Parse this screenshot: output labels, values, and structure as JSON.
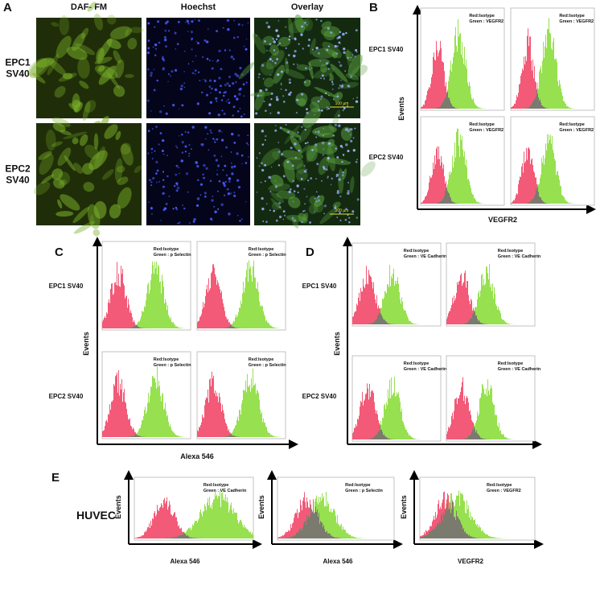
{
  "figure": {
    "panel_a": {
      "label": "A",
      "columns": [
        "DAF- FM",
        "Hoechst",
        "Overlay"
      ],
      "rows": [
        [
          "EPC1",
          "SV40"
        ],
        [
          "EPC2",
          "SV40"
        ]
      ],
      "scale_bar": "100 µm"
    },
    "panel_b": {
      "label": "B",
      "rows": [
        "EPC1 SV40",
        "EPC2 SV40"
      ],
      "y_axis": "Events",
      "x_axis": "VEGFR2",
      "legend": [
        "Red:Isotype",
        "Green : VEGFR2"
      ]
    },
    "panel_c": {
      "label": "C",
      "rows": [
        "EPC1 SV40",
        "EPC2 SV40"
      ],
      "y_axis": "Events",
      "x_axis": "Alexa 546",
      "legend": [
        "Red:Isotype",
        "Green : p Selectin"
      ]
    },
    "panel_d": {
      "label": "D",
      "rows": [
        "EPC1 SV40",
        "EPC2 SV40"
      ],
      "y_axis": "Events",
      "legend": [
        "Red:Isotype",
        "Green : VE Cadherin"
      ]
    },
    "panel_e": {
      "label": "E",
      "row": "HUVEC",
      "plots": [
        {
          "legend": [
            "Red:Isotype",
            "Green : VE Cadherin"
          ],
          "y_axis": "Events",
          "x_axis": "Alexa 546"
        },
        {
          "legend": [
            "Red:Isotype",
            "Green : p Selectin"
          ],
          "y_axis": "Events",
          "x_axis": "Alexa 546"
        },
        {
          "legend": [
            "Red:Isotype",
            "Green : VEGFR2"
          ],
          "y_axis": "Events",
          "x_axis": "VEGFR2"
        }
      ]
    }
  }
}
